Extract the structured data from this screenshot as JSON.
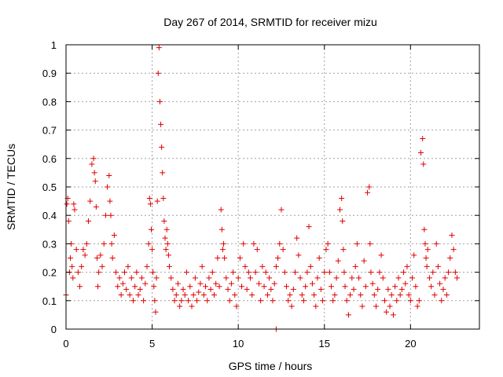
{
  "chart_data": {
    "type": "scatter",
    "title": "Day 267 of 2014, SRMTID for receiver mizu",
    "xlabel": "GPS time / hours",
    "ylabel": "SRMTID / TECUs",
    "xlim": [
      0,
      24
    ],
    "ylim": [
      0,
      1
    ],
    "xticks": [
      0,
      5,
      10,
      15,
      20
    ],
    "xtick_labels": [
      "0",
      "5",
      "10",
      "15",
      "20"
    ],
    "yticks": [
      0,
      0.1,
      0.2,
      0.3,
      0.4,
      0.5,
      0.6,
      0.7,
      0.8,
      0.9,
      1
    ],
    "ytick_labels": [
      "0",
      "0.1",
      "0.2",
      "0.3",
      "0.4",
      "0.5",
      "0.6",
      "0.7",
      "0.8",
      "0.9",
      "1"
    ],
    "grid": true,
    "marker": "plus",
    "color": "#e00000",
    "series": [
      {
        "name": "SRMTID",
        "x": [
          0.0,
          0.05,
          0.1,
          0.15,
          0.2,
          0.25,
          0.3,
          0.35,
          0.4,
          0.45,
          0.5,
          0.6,
          0.7,
          0.8,
          0.9,
          1.0,
          1.1,
          1.2,
          1.3,
          1.4,
          1.5,
          1.6,
          1.65,
          1.7,
          1.75,
          1.8,
          1.85,
          1.9,
          2.0,
          2.1,
          2.2,
          2.3,
          2.4,
          2.5,
          2.55,
          2.6,
          2.65,
          2.7,
          2.8,
          2.9,
          3.0,
          3.1,
          3.2,
          3.3,
          3.4,
          3.5,
          3.6,
          3.7,
          3.8,
          3.9,
          4.0,
          4.1,
          4.2,
          4.3,
          4.4,
          4.5,
          4.6,
          4.7,
          4.8,
          4.85,
          4.9,
          4.95,
          5.0,
          5.05,
          5.1,
          5.15,
          5.2,
          5.25,
          5.3,
          5.35,
          5.4,
          5.45,
          5.5,
          5.55,
          5.6,
          5.65,
          5.7,
          5.75,
          5.8,
          5.85,
          5.9,
          5.95,
          6.0,
          6.1,
          6.2,
          6.3,
          6.4,
          6.5,
          6.6,
          6.7,
          6.8,
          6.9,
          7.0,
          7.1,
          7.2,
          7.3,
          7.4,
          7.5,
          7.6,
          7.7,
          7.8,
          7.9,
          8.0,
          8.1,
          8.2,
          8.3,
          8.4,
          8.5,
          8.6,
          8.7,
          8.8,
          8.9,
          9.0,
          9.05,
          9.1,
          9.15,
          9.2,
          9.3,
          9.4,
          9.5,
          9.6,
          9.7,
          9.8,
          9.9,
          10.0,
          10.1,
          10.2,
          10.3,
          10.4,
          10.5,
          10.6,
          10.7,
          10.8,
          10.9,
          11.0,
          11.1,
          11.2,
          11.3,
          11.4,
          11.5,
          11.6,
          11.7,
          11.8,
          11.9,
          12.0,
          12.1,
          12.2,
          12.3,
          12.4,
          12.5,
          12.6,
          12.7,
          12.8,
          12.9,
          13.0,
          13.1,
          13.2,
          13.3,
          13.4,
          13.5,
          13.6,
          13.7,
          13.8,
          13.9,
          14.0,
          14.1,
          14.2,
          14.3,
          14.4,
          14.5,
          14.6,
          14.7,
          14.8,
          14.9,
          15.0,
          15.1,
          15.2,
          15.3,
          15.4,
          15.5,
          15.6,
          15.7,
          15.8,
          15.9,
          16.0,
          16.05,
          16.1,
          16.15,
          16.2,
          16.3,
          16.4,
          16.5,
          16.6,
          16.7,
          16.8,
          16.9,
          17.0,
          17.1,
          17.2,
          17.3,
          17.4,
          17.5,
          17.6,
          17.65,
          17.7,
          17.8,
          17.9,
          18.0,
          18.1,
          18.2,
          18.3,
          18.4,
          18.5,
          18.6,
          18.7,
          18.8,
          18.9,
          19.0,
          19.1,
          19.2,
          19.3,
          19.4,
          19.5,
          19.6,
          19.7,
          19.8,
          19.9,
          20.0,
          20.1,
          20.2,
          20.3,
          20.4,
          20.5,
          20.6,
          20.7,
          20.75,
          20.8,
          20.85,
          20.9,
          20.95,
          21.0,
          21.1,
          21.2,
          21.3,
          21.4,
          21.5,
          21.6,
          21.7,
          21.8,
          21.9,
          22.0,
          22.1,
          22.2,
          22.3,
          22.4,
          22.5,
          22.6,
          22.7,
          12.2
        ],
        "y": [
          0.12,
          0.44,
          0.46,
          0.38,
          0.2,
          0.25,
          0.3,
          0.22,
          0.18,
          0.44,
          0.42,
          0.28,
          0.2,
          0.15,
          0.22,
          0.28,
          0.26,
          0.3,
          0.38,
          0.45,
          0.58,
          0.6,
          0.55,
          0.52,
          0.43,
          0.25,
          0.15,
          0.2,
          0.26,
          0.22,
          0.3,
          0.4,
          0.5,
          0.54,
          0.45,
          0.4,
          0.3,
          0.25,
          0.33,
          0.2,
          0.15,
          0.18,
          0.12,
          0.16,
          0.2,
          0.14,
          0.22,
          0.12,
          0.18,
          0.1,
          0.15,
          0.2,
          0.12,
          0.14,
          0.18,
          0.1,
          0.16,
          0.22,
          0.3,
          0.46,
          0.44,
          0.35,
          0.28,
          0.2,
          0.15,
          0.1,
          0.06,
          0.18,
          0.45,
          0.9,
          0.99,
          0.8,
          0.72,
          0.64,
          0.55,
          0.46,
          0.38,
          0.32,
          0.28,
          0.35,
          0.3,
          0.26,
          0.22,
          0.18,
          0.14,
          0.1,
          0.12,
          0.16,
          0.08,
          0.1,
          0.14,
          0.12,
          0.2,
          0.1,
          0.15,
          0.08,
          0.12,
          0.18,
          0.1,
          0.13,
          0.16,
          0.22,
          0.12,
          0.15,
          0.1,
          0.18,
          0.14,
          0.2,
          0.12,
          0.16,
          0.25,
          0.15,
          0.42,
          0.35,
          0.28,
          0.3,
          0.25,
          0.18,
          0.14,
          0.1,
          0.16,
          0.2,
          0.12,
          0.08,
          0.18,
          0.25,
          0.15,
          0.3,
          0.22,
          0.14,
          0.2,
          0.18,
          0.12,
          0.3,
          0.2,
          0.28,
          0.16,
          0.1,
          0.22,
          0.15,
          0.2,
          0.12,
          0.18,
          0.14,
          0.1,
          0.16,
          0.22,
          0.25,
          0.3,
          0.42,
          0.28,
          0.2,
          0.15,
          0.1,
          0.12,
          0.08,
          0.14,
          0.2,
          0.32,
          0.26,
          0.18,
          0.12,
          0.1,
          0.15,
          0.2,
          0.36,
          0.22,
          0.16,
          0.12,
          0.08,
          0.18,
          0.25,
          0.14,
          0.1,
          0.2,
          0.28,
          0.3,
          0.2,
          0.15,
          0.1,
          0.12,
          0.18,
          0.24,
          0.42,
          0.46,
          0.38,
          0.28,
          0.2,
          0.15,
          0.1,
          0.05,
          0.12,
          0.18,
          0.14,
          0.22,
          0.3,
          0.18,
          0.12,
          0.08,
          0.24,
          0.15,
          0.48,
          0.5,
          0.3,
          0.2,
          0.16,
          0.12,
          0.08,
          0.14,
          0.2,
          0.26,
          0.18,
          0.1,
          0.06,
          0.14,
          0.08,
          0.12,
          0.05,
          0.15,
          0.1,
          0.18,
          0.12,
          0.14,
          0.2,
          0.16,
          0.22,
          0.12,
          0.1,
          0.18,
          0.26,
          0.15,
          0.08,
          0.1,
          0.62,
          0.67,
          0.58,
          0.35,
          0.3,
          0.25,
          0.22,
          0.28,
          0.18,
          0.15,
          0.2,
          0.12,
          0.3,
          0.22,
          0.16,
          0.1,
          0.14,
          0.18,
          0.12,
          0.2,
          0.25,
          0.33,
          0.28,
          0.2,
          0.18,
          0.0
        ]
      }
    ]
  }
}
